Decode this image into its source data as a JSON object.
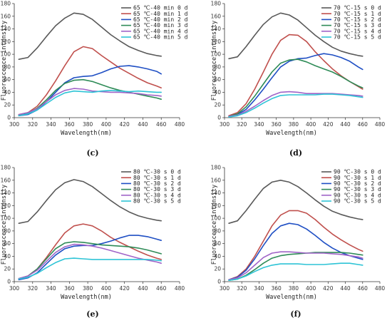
{
  "chart_data": [
    {
      "type": "line",
      "panel_label": "(c)",
      "xlabel": "Wavelength(nm)",
      "ylabel": "Fluorescence intensity",
      "xlim": [
        300,
        480
      ],
      "ylim": [
        0,
        180
      ],
      "xticks": [
        300,
        320,
        340,
        360,
        380,
        400,
        420,
        440,
        460,
        480
      ],
      "yticks": [
        0,
        20,
        40,
        60,
        80,
        100,
        120,
        140,
        160,
        180
      ],
      "legend_position": "top-right",
      "series": [
        {
          "name": "65 ℃-40 min 0 d",
          "color": "#595959",
          "x": [
            305,
            315,
            325,
            335,
            345,
            355,
            365,
            375,
            385,
            395,
            405,
            415,
            425,
            435,
            445,
            455,
            460
          ],
          "y": [
            92,
            95,
            110,
            128,
            145,
            157,
            165,
            163,
            155,
            143,
            131,
            121,
            112,
            106,
            101,
            98,
            97
          ]
        },
        {
          "name": "65 ℃-40 min 1 d",
          "color": "#c0504d",
          "x": [
            305,
            315,
            325,
            335,
            345,
            355,
            365,
            375,
            385,
            395,
            405,
            415,
            425,
            435,
            445,
            455,
            460
          ],
          "y": [
            5,
            8,
            18,
            36,
            58,
            82,
            104,
            112,
            109,
            98,
            88,
            78,
            70,
            62,
            55,
            50,
            47
          ]
        },
        {
          "name": "65 ℃-40 min 2 d",
          "color": "#1f4fc4",
          "x": [
            305,
            315,
            325,
            335,
            345,
            355,
            365,
            375,
            385,
            395,
            405,
            415,
            425,
            435,
            445,
            455,
            460
          ],
          "y": [
            3,
            5,
            12,
            25,
            40,
            55,
            63,
            65,
            66,
            71,
            77,
            81,
            82,
            80,
            77,
            73,
            69
          ]
        },
        {
          "name": "65 ℃-40 min 3 d",
          "color": "#2e8b57",
          "x": [
            305,
            315,
            325,
            335,
            345,
            355,
            365,
            375,
            385,
            395,
            405,
            415,
            425,
            435,
            445,
            455,
            460
          ],
          "y": [
            4,
            7,
            15,
            28,
            43,
            54,
            59,
            60,
            57,
            52,
            47,
            43,
            40,
            37,
            34,
            31,
            29
          ]
        },
        {
          "name": "65 ℃-40 min 4 d",
          "color": "#a064c8",
          "x": [
            305,
            315,
            325,
            335,
            345,
            355,
            365,
            375,
            385,
            395,
            405,
            415,
            425,
            435,
            445,
            455,
            460
          ],
          "y": [
            5,
            8,
            14,
            25,
            36,
            43,
            46,
            45,
            42,
            41,
            40,
            40,
            39,
            38,
            36,
            35,
            34
          ]
        },
        {
          "name": "65 ℃-40 min 5 d",
          "color": "#2ec4d6",
          "x": [
            305,
            315,
            325,
            335,
            345,
            355,
            365,
            375,
            385,
            395,
            405,
            415,
            425,
            435,
            445,
            455,
            460
          ],
          "y": [
            3,
            6,
            12,
            22,
            32,
            39,
            42,
            41,
            40,
            42,
            43,
            42,
            41,
            42,
            41,
            40,
            40
          ]
        }
      ]
    },
    {
      "type": "line",
      "panel_label": "(d)",
      "xlabel": "Wavelength(nm)",
      "ylabel": "Fluorescence intensity",
      "xlim": [
        300,
        480
      ],
      "ylim": [
        0,
        180
      ],
      "xticks": [
        300,
        320,
        340,
        360,
        380,
        400,
        420,
        440,
        460,
        480
      ],
      "yticks": [
        0,
        20,
        40,
        60,
        80,
        100,
        120,
        140,
        160,
        180
      ],
      "legend_position": "top-right",
      "series": [
        {
          "name": "70 ℃-15 s 0 d",
          "color": "#595959",
          "x": [
            305,
            315,
            325,
            335,
            345,
            355,
            365,
            375,
            385,
            395,
            405,
            415,
            425,
            435,
            445,
            455,
            460
          ],
          "y": [
            93,
            96,
            112,
            130,
            147,
            159,
            165,
            162,
            154,
            142,
            130,
            120,
            111,
            105,
            101,
            98,
            97
          ]
        },
        {
          "name": "70 ℃-15 s 1 d",
          "color": "#c0504d",
          "x": [
            305,
            315,
            325,
            335,
            345,
            355,
            365,
            375,
            385,
            395,
            405,
            415,
            425,
            435,
            445,
            455,
            460
          ],
          "y": [
            3,
            8,
            22,
            45,
            72,
            100,
            122,
            131,
            130,
            120,
            104,
            90,
            77,
            66,
            57,
            49,
            45
          ]
        },
        {
          "name": "70 ℃-15 s 2 d",
          "color": "#1f4fc4",
          "x": [
            305,
            315,
            325,
            335,
            345,
            355,
            365,
            375,
            385,
            395,
            405,
            415,
            425,
            435,
            445,
            455,
            460
          ],
          "y": [
            2,
            5,
            13,
            28,
            45,
            63,
            80,
            89,
            93,
            94,
            98,
            101,
            99,
            95,
            89,
            80,
            76
          ]
        },
        {
          "name": "70 ℃-15 s 3 d",
          "color": "#2e8b57",
          "x": [
            305,
            315,
            325,
            335,
            345,
            355,
            365,
            375,
            385,
            395,
            405,
            415,
            425,
            435,
            445,
            455,
            460
          ],
          "y": [
            2,
            6,
            17,
            34,
            53,
            72,
            86,
            91,
            92,
            88,
            82,
            77,
            72,
            65,
            57,
            50,
            47
          ]
        },
        {
          "name": "70 ℃-15 s 4 d",
          "color": "#a064c8",
          "x": [
            305,
            315,
            325,
            335,
            345,
            355,
            365,
            375,
            385,
            395,
            405,
            415,
            425,
            435,
            445,
            455,
            460
          ],
          "y": [
            2,
            4,
            10,
            18,
            27,
            35,
            40,
            41,
            40,
            38,
            38,
            38,
            38,
            37,
            36,
            35,
            34
          ]
        },
        {
          "name": "70 ℃-15 s 5 d",
          "color": "#2ec4d6",
          "x": [
            305,
            315,
            325,
            335,
            345,
            355,
            365,
            375,
            385,
            395,
            405,
            415,
            425,
            435,
            445,
            455,
            460
          ],
          "y": [
            1,
            3,
            8,
            15,
            23,
            30,
            35,
            36,
            36,
            36,
            36,
            37,
            37,
            36,
            35,
            33,
            32
          ]
        }
      ]
    },
    {
      "type": "line",
      "panel_label": "(e)",
      "xlabel": "Wavelength(nm)",
      "ylabel": "Fluorescence intensity",
      "xlim": [
        300,
        480
      ],
      "ylim": [
        0,
        180
      ],
      "xticks": [
        300,
        320,
        340,
        360,
        380,
        400,
        420,
        440,
        460,
        480
      ],
      "yticks": [
        0,
        20,
        40,
        60,
        80,
        100,
        120,
        140,
        160,
        180
      ],
      "legend_position": "top-right",
      "series": [
        {
          "name": "80 ℃-30 s 0 d",
          "color": "#595959",
          "x": [
            305,
            315,
            325,
            335,
            345,
            355,
            365,
            375,
            385,
            395,
            405,
            415,
            425,
            435,
            445,
            455,
            460
          ],
          "y": [
            92,
            95,
            110,
            128,
            145,
            156,
            161,
            158,
            150,
            139,
            128,
            118,
            110,
            104,
            100,
            97,
            96
          ]
        },
        {
          "name": "80 ℃-30 s 1 d",
          "color": "#c0504d",
          "x": [
            305,
            315,
            325,
            335,
            345,
            355,
            365,
            375,
            385,
            395,
            405,
            415,
            425,
            435,
            445,
            455,
            460
          ],
          "y": [
            4,
            9,
            20,
            38,
            58,
            77,
            88,
            91,
            88,
            80,
            70,
            62,
            55,
            48,
            42,
            37,
            35
          ]
        },
        {
          "name": "80 ℃-30 s 2 d",
          "color": "#1f4fc4",
          "x": [
            305,
            315,
            325,
            335,
            345,
            355,
            365,
            375,
            385,
            395,
            405,
            415,
            425,
            435,
            445,
            455,
            460
          ],
          "y": [
            3,
            6,
            14,
            28,
            42,
            52,
            56,
            57,
            57,
            60,
            64,
            69,
            73,
            73,
            71,
            67,
            65
          ]
        },
        {
          "name": "80 ℃-30 s 3 d",
          "color": "#2e8b57",
          "x": [
            305,
            315,
            325,
            335,
            345,
            355,
            365,
            375,
            385,
            395,
            405,
            415,
            425,
            435,
            445,
            455,
            460
          ],
          "y": [
            5,
            9,
            20,
            36,
            52,
            61,
            63,
            62,
            60,
            58,
            57,
            56,
            55,
            53,
            50,
            46,
            44
          ]
        },
        {
          "name": "80 ℃-30 s 4 d",
          "color": "#a064c8",
          "x": [
            305,
            315,
            325,
            335,
            345,
            355,
            365,
            375,
            385,
            395,
            405,
            415,
            425,
            435,
            445,
            455,
            460
          ],
          "y": [
            5,
            9,
            18,
            32,
            46,
            55,
            59,
            58,
            56,
            53,
            49,
            45,
            41,
            37,
            34,
            31,
            29
          ]
        },
        {
          "name": "80 ℃-30 s 5 d",
          "color": "#2ec4d6",
          "x": [
            305,
            315,
            325,
            335,
            345,
            355,
            365,
            375,
            385,
            395,
            405,
            415,
            425,
            435,
            445,
            455,
            460
          ],
          "y": [
            4,
            7,
            13,
            22,
            30,
            36,
            37,
            36,
            35,
            35,
            35,
            35,
            35,
            35,
            35,
            34,
            33
          ]
        }
      ]
    },
    {
      "type": "line",
      "panel_label": "(f)",
      "xlabel": "Wavelength(nm)",
      "ylabel": "Fluorescence intensity",
      "xlim": [
        300,
        480
      ],
      "ylim": [
        0,
        180
      ],
      "xticks": [
        300,
        320,
        340,
        360,
        380,
        400,
        420,
        440,
        460,
        480
      ],
      "yticks": [
        0,
        20,
        40,
        60,
        80,
        100,
        120,
        140,
        160,
        180
      ],
      "legend_position": "top-right",
      "series": [
        {
          "name": "90 ℃-30 s 0 d",
          "color": "#595959",
          "x": [
            305,
            315,
            325,
            335,
            345,
            355,
            365,
            375,
            385,
            395,
            405,
            415,
            425,
            435,
            445,
            455,
            460
          ],
          "y": [
            92,
            96,
            112,
            130,
            147,
            157,
            160,
            157,
            150,
            140,
            129,
            119,
            111,
            106,
            102,
            99,
            98
          ]
        },
        {
          "name": "90 ℃-30 s 1 d",
          "color": "#c0504d",
          "x": [
            305,
            315,
            325,
            335,
            345,
            355,
            365,
            375,
            385,
            395,
            405,
            415,
            425,
            435,
            445,
            455,
            460
          ],
          "y": [
            3,
            8,
            20,
            40,
            64,
            88,
            105,
            112,
            112,
            108,
            98,
            86,
            75,
            66,
            58,
            51,
            48
          ]
        },
        {
          "name": "90 ℃-30 s 2 d",
          "color": "#1f4fc4",
          "x": [
            305,
            315,
            325,
            335,
            345,
            355,
            365,
            375,
            385,
            395,
            405,
            415,
            425,
            435,
            445,
            455,
            460
          ],
          "y": [
            3,
            7,
            18,
            36,
            57,
            76,
            88,
            92,
            90,
            83,
            73,
            62,
            53,
            46,
            41,
            37,
            35
          ]
        },
        {
          "name": "90 ℃-30 s 3 d",
          "color": "#2e8b57",
          "x": [
            305,
            315,
            325,
            335,
            345,
            355,
            365,
            375,
            385,
            395,
            405,
            415,
            425,
            435,
            445,
            455,
            460
          ],
          "y": [
            2,
            4,
            10,
            19,
            29,
            37,
            41,
            43,
            44,
            45,
            46,
            46,
            46,
            46,
            45,
            43,
            42
          ]
        },
        {
          "name": "90 ℃-30 s 4 d",
          "color": "#a064c8",
          "x": [
            305,
            315,
            325,
            335,
            345,
            355,
            365,
            375,
            385,
            395,
            405,
            415,
            425,
            435,
            445,
            455,
            460
          ],
          "y": [
            3,
            6,
            14,
            26,
            38,
            45,
            47,
            47,
            46,
            45,
            45,
            45,
            44,
            43,
            41,
            39,
            37
          ]
        },
        {
          "name": "90 ℃-30 s 5 d",
          "color": "#2ec4d6",
          "x": [
            305,
            315,
            325,
            335,
            345,
            355,
            365,
            375,
            385,
            395,
            405,
            415,
            425,
            435,
            445,
            455,
            460
          ],
          "y": [
            2,
            4,
            9,
            16,
            22,
            26,
            28,
            28,
            28,
            27,
            27,
            27,
            28,
            29,
            29,
            27,
            26
          ]
        }
      ]
    }
  ]
}
